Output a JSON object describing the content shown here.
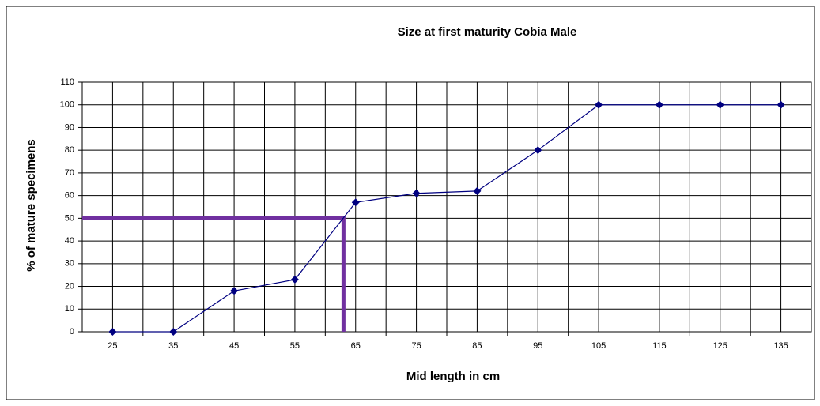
{
  "chart_data": {
    "type": "line",
    "title": "Size at first maturity Cobia Male",
    "x_label": "Mid length in cm",
    "y_label": "% of mature specimens",
    "x": [
      25,
      35,
      45,
      55,
      65,
      75,
      85,
      95,
      105,
      115,
      125,
      135
    ],
    "series": [
      {
        "name": "Male",
        "color": "#000080",
        "values": [
          0,
          0,
          18,
          23,
          57,
          61,
          62,
          80,
          100,
          100,
          100,
          100
        ]
      }
    ],
    "xlim": [
      20,
      140
    ],
    "xticks": [
      25,
      35,
      45,
      55,
      65,
      75,
      85,
      95,
      105,
      115,
      125,
      135
    ],
    "ylim": [
      0,
      110
    ],
    "yticks": [
      0,
      10,
      20,
      30,
      40,
      50,
      60,
      70,
      80,
      90,
      100,
      110
    ],
    "grid": true,
    "reference": {
      "x": 63,
      "y": 50,
      "color": "#7030a0"
    }
  }
}
